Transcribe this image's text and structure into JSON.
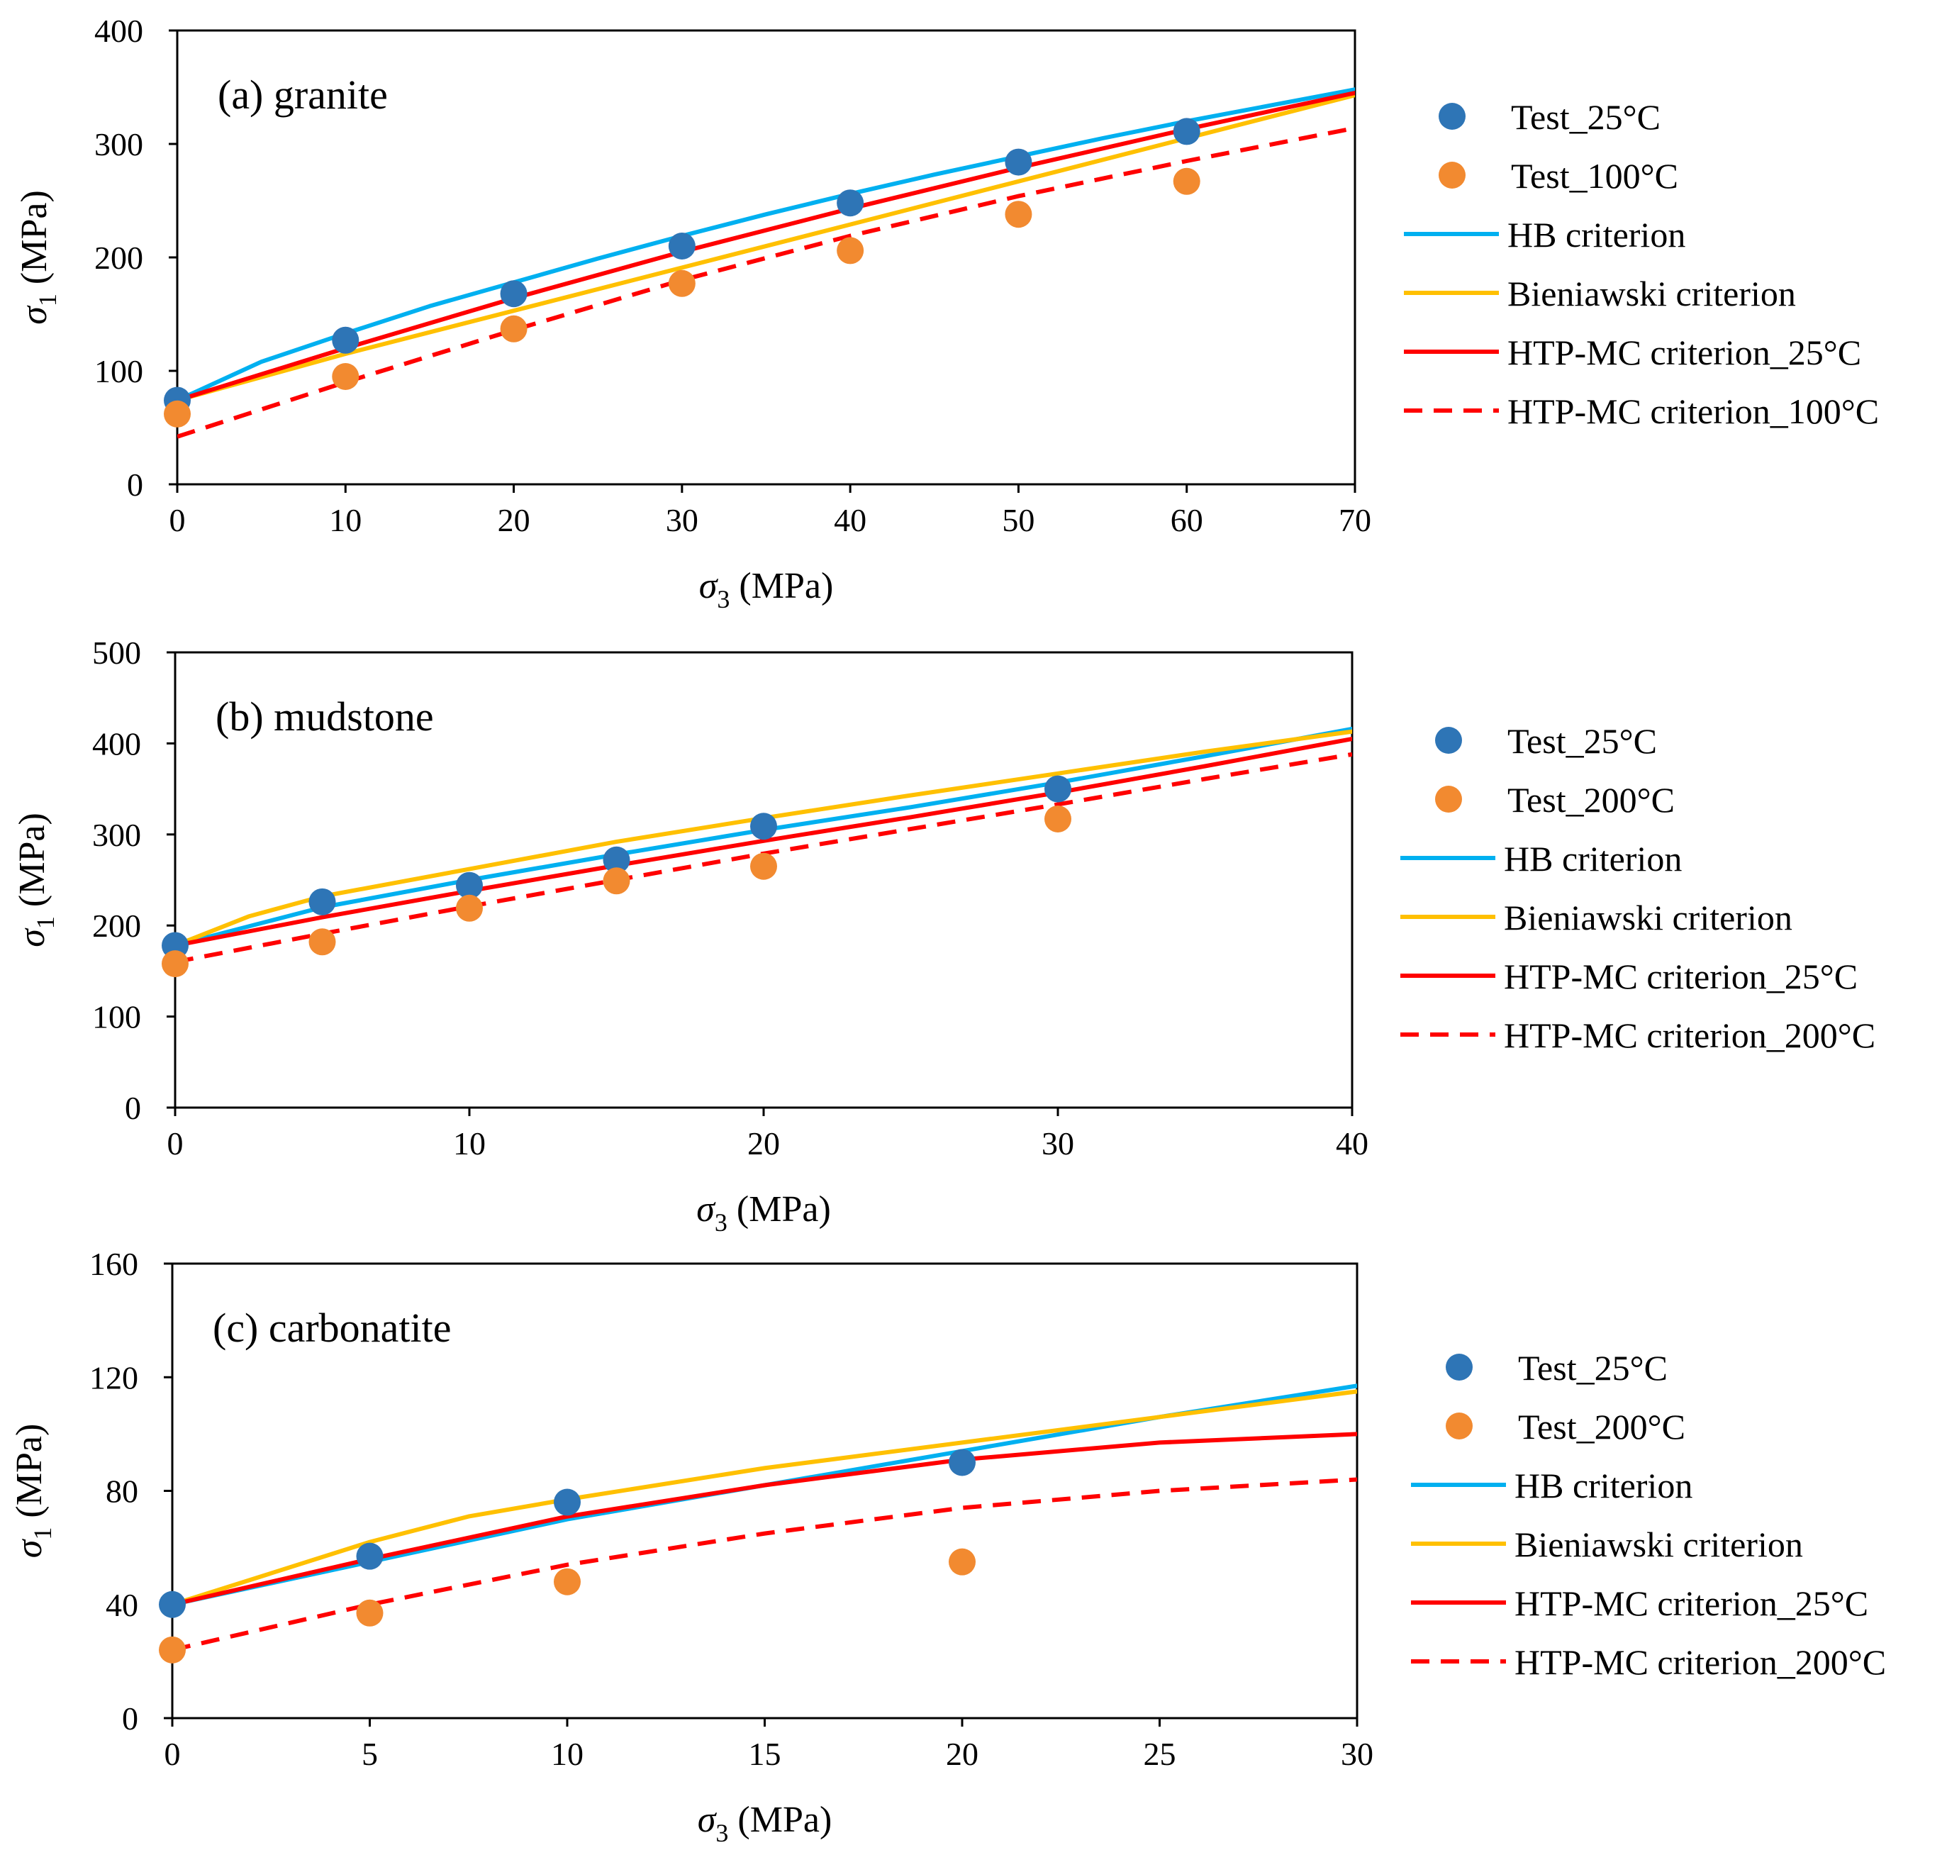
{
  "figure": {
    "series_style": {
      "Test_25": {
        "kind": "marker",
        "color": "#2e75b6"
      },
      "Test_hot": {
        "kind": "marker",
        "color": "#f28a30"
      },
      "HB": {
        "kind": "line",
        "color": "#00b0f0",
        "dash": false
      },
      "Bieniawski": {
        "kind": "line",
        "color": "#ffc000",
        "dash": false
      },
      "HTPMC_25": {
        "kind": "line",
        "color": "#ff0000",
        "dash": false
      },
      "HTPMC_hot": {
        "kind": "line",
        "color": "#ff0000",
        "dash": true
      }
    }
  },
  "chart_data": [
    {
      "type": "scatter+line",
      "title": "(a) granite",
      "xlabel": {
        "symbol": "σ",
        "sub": "3",
        "unit": " (MPa)"
      },
      "ylabel": {
        "symbol": "σ",
        "sub": "1",
        "unit": " (MPa)"
      },
      "xlim": [
        0,
        70
      ],
      "ylim": [
        0,
        400
      ],
      "xticks": [
        0,
        10,
        20,
        30,
        40,
        50,
        60,
        70
      ],
      "yticks": [
        0,
        100,
        200,
        300,
        400
      ],
      "grid": false,
      "legend": "right",
      "series": [
        {
          "key": "Test_25",
          "name": "Test_25°C",
          "x": [
            0,
            10,
            20,
            30,
            40,
            50,
            60
          ],
          "y": [
            74,
            127,
            168,
            210,
            248,
            284,
            311
          ]
        },
        {
          "key": "Test_hot",
          "name": "Test_100°C",
          "x": [
            0,
            10,
            20,
            30,
            40,
            50,
            60
          ],
          "y": [
            62,
            95,
            137,
            177,
            206,
            238,
            267
          ]
        },
        {
          "key": "HB",
          "name": "HB criterion",
          "x": [
            0,
            5,
            10,
            15,
            20,
            25,
            30,
            35,
            40,
            45,
            50,
            55,
            60,
            65,
            70
          ],
          "y": [
            74,
            108,
            133,
            157,
            178,
            199,
            219,
            238,
            256,
            273,
            289,
            305,
            320,
            334,
            348
          ]
        },
        {
          "key": "Bieniawski",
          "name": "Bieniawski criterion",
          "x": [
            0,
            10,
            20,
            30,
            40,
            50,
            60,
            70
          ],
          "y": [
            74,
            115,
            153,
            191,
            229,
            267,
            305,
            343
          ]
        },
        {
          "key": "HTPMC_25",
          "name": "HTP-MC criterion_25°C",
          "x": [
            0,
            10,
            20,
            30,
            40,
            50,
            60,
            70
          ],
          "y": [
            74,
            120,
            164,
            205,
            243,
            279,
            313,
            345
          ]
        },
        {
          "key": "HTPMC_hot",
          "name": "HTP-MC criterion_100°C",
          "x": [
            0,
            10,
            20,
            30,
            40,
            50,
            60,
            70
          ],
          "y": [
            42,
            90,
            136,
            180,
            219,
            254,
            285,
            314
          ]
        }
      ]
    },
    {
      "type": "scatter+line",
      "title": "(b) mudstone",
      "xlabel": {
        "symbol": "σ",
        "sub": "3",
        "unit": " (MPa)"
      },
      "ylabel": {
        "symbol": "σ",
        "sub": "1",
        "unit": " (MPa)"
      },
      "xlim": [
        0,
        40
      ],
      "ylim": [
        0,
        500
      ],
      "xticks": [
        0,
        10,
        20,
        30,
        40
      ],
      "yticks": [
        0,
        100,
        200,
        300,
        400,
        500
      ],
      "grid": false,
      "legend": "right",
      "series": [
        {
          "key": "Test_25",
          "name": "Test_25°C",
          "x": [
            0,
            5,
            10,
            15,
            20,
            30
          ],
          "y": [
            178,
            226,
            244,
            272,
            309,
            350
          ]
        },
        {
          "key": "Test_hot",
          "name": "Test_200°C",
          "x": [
            0,
            5,
            10,
            15,
            20,
            30
          ],
          "y": [
            158,
            182,
            219,
            249,
            265,
            317
          ]
        },
        {
          "key": "HB",
          "name": "HB criterion",
          "x": [
            0,
            5,
            10,
            15,
            20,
            25,
            30,
            35,
            40
          ],
          "y": [
            178,
            220,
            250,
            278,
            305,
            330,
            357,
            386,
            416
          ]
        },
        {
          "key": "Bieniawski",
          "name": "Bieniawski criterion",
          "x": [
            0,
            2.5,
            5,
            10,
            15,
            20,
            25,
            30,
            35,
            40
          ],
          "y": [
            178,
            210,
            232,
            262,
            292,
            318,
            343,
            367,
            391,
            413
          ]
        },
        {
          "key": "HTPMC_25",
          "name": "HTP-MC criterion_25°C",
          "x": [
            0,
            5,
            10,
            15,
            20,
            25,
            30,
            35,
            40
          ],
          "y": [
            178,
            209,
            238,
            266,
            293,
            319,
            346,
            375,
            405
          ]
        },
        {
          "key": "HTPMC_hot",
          "name": "HTP-MC criterion_200°C",
          "x": [
            0,
            5,
            10,
            15,
            20,
            25,
            30,
            35,
            40
          ],
          "y": [
            160,
            191,
            221,
            250,
            279,
            306,
            333,
            361,
            388
          ]
        }
      ]
    },
    {
      "type": "scatter+line",
      "title": "(c) carbonatite",
      "xlabel": {
        "symbol": "σ",
        "sub": "3",
        "unit": " (MPa)"
      },
      "ylabel": {
        "symbol": "σ",
        "sub": "1",
        "unit": " (MPa)"
      },
      "xlim": [
        0,
        30
      ],
      "ylim": [
        0,
        160
      ],
      "xticks": [
        0,
        5,
        10,
        15,
        20,
        25,
        30
      ],
      "yticks": [
        0,
        40,
        80,
        120,
        160
      ],
      "grid": false,
      "legend": "right",
      "series": [
        {
          "key": "Test_25",
          "name": "Test_25°C",
          "x": [
            0,
            5,
            10,
            20
          ],
          "y": [
            40,
            57,
            76,
            90
          ]
        },
        {
          "key": "Test_hot",
          "name": "Test_200°C",
          "x": [
            0,
            5,
            10,
            20
          ],
          "y": [
            24,
            37,
            48,
            55
          ]
        },
        {
          "key": "HB",
          "name": "HB criterion",
          "x": [
            0,
            5,
            10,
            15,
            20,
            25,
            30
          ],
          "y": [
            40,
            55,
            70,
            82,
            94,
            106,
            117
          ]
        },
        {
          "key": "Bieniawski",
          "name": "Bieniawski criterion",
          "x": [
            0,
            2.5,
            5,
            7.5,
            10,
            15,
            20,
            25,
            30
          ],
          "y": [
            40,
            51,
            62,
            71,
            77,
            88,
            97,
            106,
            115
          ]
        },
        {
          "key": "HTPMC_25",
          "name": "HTP-MC criterion_25°C",
          "x": [
            0,
            5,
            10,
            15,
            20,
            25,
            30
          ],
          "y": [
            40,
            56,
            71,
            82,
            91,
            97,
            100
          ]
        },
        {
          "key": "HTPMC_hot",
          "name": "HTP-MC criterion_200°C",
          "x": [
            0,
            5,
            10,
            15,
            20,
            25,
            30
          ],
          "y": [
            24,
            40,
            54,
            65,
            74,
            80,
            84
          ]
        }
      ]
    }
  ]
}
